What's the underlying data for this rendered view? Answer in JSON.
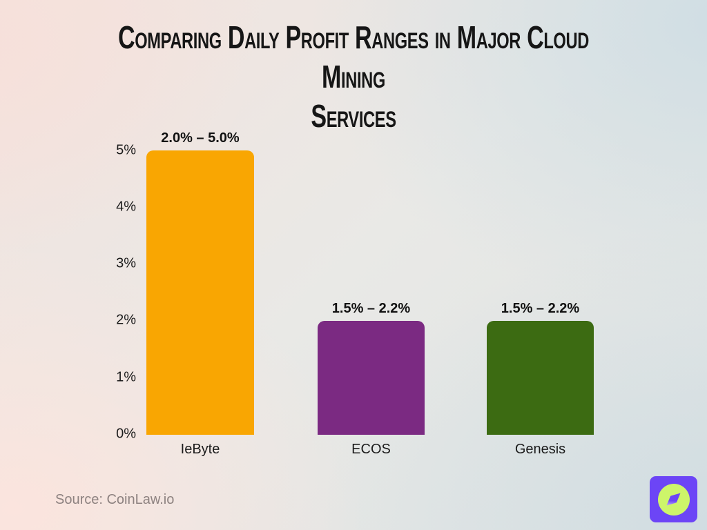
{
  "title": {
    "line1": "Comparing Daily Profit Ranges in Major Cloud Mining",
    "line2": "Services",
    "full": "Comparing Daily Profit Ranges in Major Cloud Mining Services"
  },
  "source": {
    "text": "Source: CoinLaw.io"
  },
  "colors": {
    "title_text": "#161616",
    "axis_text": "#1b1b1b",
    "label_text": "#111111",
    "source_text": "#8d8280",
    "bar_orange": "#F9A602",
    "bar_purple": "#7B2A82",
    "bar_green": "#3C6B12"
  },
  "logo": {
    "name": "coinlaw-compass-logo",
    "bg_color": "#6C45F6",
    "accent_color": "#CDF56A"
  },
  "chart_data": {
    "type": "bar",
    "title": "Comparing Daily Profit Ranges in Major Cloud Mining Services",
    "categories": [
      "IeByte",
      "ECOS",
      "Genesis"
    ],
    "values": [
      5.0,
      2.0,
      2.0
    ],
    "bar_range_labels": [
      "2.0% – 5.0%",
      "1.5% – 2.2%",
      "1.5% – 2.2%"
    ],
    "ranges": [
      {
        "category": "IeByte",
        "min_pct": 2.0,
        "max_pct": 5.0
      },
      {
        "category": "ECOS",
        "min_pct": 1.5,
        "max_pct": 2.2
      },
      {
        "category": "Genesis",
        "min_pct": 1.5,
        "max_pct": 2.2
      }
    ],
    "bar_colors": [
      "#F9A602",
      "#7B2A82",
      "#3C6B12"
    ],
    "y_ticks": [
      "0%",
      "1%",
      "2%",
      "3%",
      "4%",
      "5%"
    ],
    "ylim": [
      0,
      5
    ],
    "xlabel": "",
    "ylabel": "",
    "grid": false,
    "legend": false
  }
}
